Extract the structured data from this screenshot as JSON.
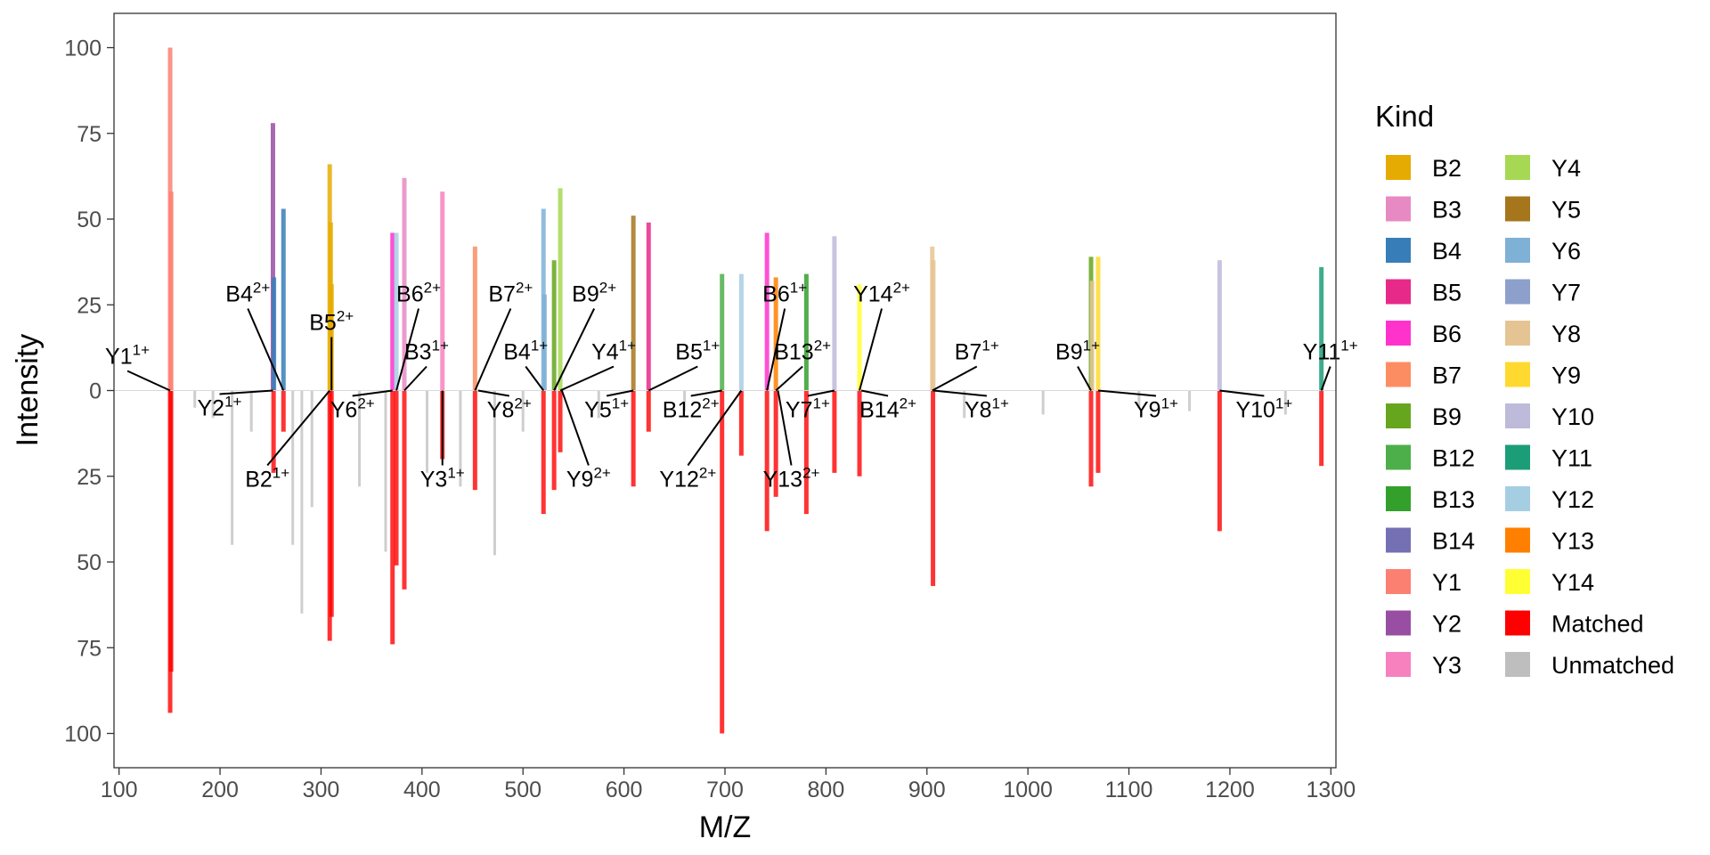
{
  "chart_data": {
    "type": "bar",
    "xlabel": "M/Z",
    "ylabel": "Intensity",
    "xlim": [
      95,
      1305
    ],
    "ylim": [
      -110,
      110
    ],
    "x_ticks": [
      100,
      200,
      300,
      400,
      500,
      600,
      700,
      800,
      900,
      1000,
      1100,
      1200,
      1300
    ],
    "y_ticks": [
      {
        "value": 100,
        "label": "100"
      },
      {
        "value": 75,
        "label": "75"
      },
      {
        "value": 50,
        "label": "50"
      },
      {
        "value": 25,
        "label": "25"
      },
      {
        "value": 0,
        "label": "0"
      },
      {
        "value": -25,
        "label": "25"
      },
      {
        "value": -50,
        "label": "50"
      },
      {
        "value": -75,
        "label": "75"
      },
      {
        "value": -100,
        "label": "100"
      }
    ],
    "grid": false,
    "legend": {
      "title": "Kind",
      "position": "right",
      "entries": [
        {
          "name": "B2",
          "color": "#E6AB02"
        },
        {
          "name": "B3",
          "color": "#E78AC3"
        },
        {
          "name": "B4",
          "color": "#377EB8"
        },
        {
          "name": "B5",
          "color": "#E7298A"
        },
        {
          "name": "B6",
          "color": "#FF33CC"
        },
        {
          "name": "B7",
          "color": "#FC8D62"
        },
        {
          "name": "B9",
          "color": "#66A61E"
        },
        {
          "name": "B12",
          "color": "#4DAF4A"
        },
        {
          "name": "B13",
          "color": "#33A02C"
        },
        {
          "name": "B14",
          "color": "#7570B3"
        },
        {
          "name": "Y1",
          "color": "#FB8072"
        },
        {
          "name": "Y2",
          "color": "#984EA3"
        },
        {
          "name": "Y3",
          "color": "#F781BF"
        },
        {
          "name": "Y4",
          "color": "#A6D854"
        },
        {
          "name": "Y5",
          "color": "#A6761D"
        },
        {
          "name": "Y6",
          "color": "#7FB0D6"
        },
        {
          "name": "Y7",
          "color": "#8DA0CB"
        },
        {
          "name": "Y8",
          "color": "#E5C494"
        },
        {
          "name": "Y9",
          "color": "#FFD92F"
        },
        {
          "name": "Y10",
          "color": "#BEBADA"
        },
        {
          "name": "Y11",
          "color": "#1B9E77"
        },
        {
          "name": "Y12",
          "color": "#A6CEE3"
        },
        {
          "name": "Y13",
          "color": "#FF7F00"
        },
        {
          "name": "Y14",
          "color": "#FFFF33"
        },
        {
          "name": "Matched",
          "color": "#FF0000"
        },
        {
          "name": "Unmatched",
          "color": "#BEBEBE"
        }
      ]
    },
    "predicted_peaks": [
      {
        "kind": "Y1",
        "x": 150.6,
        "y": 100
      },
      {
        "kind": "Y1",
        "x": 151.6,
        "y": 58
      },
      {
        "kind": "Y2",
        "x": 252.4,
        "y": 78
      },
      {
        "kind": "B4",
        "x": 253.4,
        "y": 33
      },
      {
        "kind": "B4",
        "x": 262.8,
        "y": 53
      },
      {
        "kind": "B2",
        "x": 308.6,
        "y": 66
      },
      {
        "kind": "B2",
        "x": 309.6,
        "y": 49
      },
      {
        "kind": "B2",
        "x": 310.4,
        "y": 31
      },
      {
        "kind": "B6",
        "x": 370.8,
        "y": 46
      },
      {
        "kind": "Y12",
        "x": 374.6,
        "y": 46
      },
      {
        "kind": "B3",
        "x": 382.5,
        "y": 62
      },
      {
        "kind": "Y3",
        "x": 420.2,
        "y": 58
      },
      {
        "kind": "B7",
        "x": 452.5,
        "y": 42
      },
      {
        "kind": "Y6",
        "x": 520.3,
        "y": 53
      },
      {
        "kind": "Y6",
        "x": 521.3,
        "y": 28
      },
      {
        "kind": "B9",
        "x": 530.8,
        "y": 38
      },
      {
        "kind": "Y4",
        "x": 536.9,
        "y": 59
      },
      {
        "kind": "Y5",
        "x": 609.3,
        "y": 51
      },
      {
        "kind": "B5",
        "x": 624.4,
        "y": 49
      },
      {
        "kind": "B12",
        "x": 697.1,
        "y": 34
      },
      {
        "kind": "Y12",
        "x": 716.2,
        "y": 34
      },
      {
        "kind": "B6",
        "x": 741.6,
        "y": 46
      },
      {
        "kind": "Y13",
        "x": 750.4,
        "y": 33
      },
      {
        "kind": "B13",
        "x": 780.6,
        "y": 34
      },
      {
        "kind": "Y10",
        "x": 808.4,
        "y": 45
      },
      {
        "kind": "Y14",
        "x": 833.2,
        "y": 31
      },
      {
        "kind": "Y8",
        "x": 905.3,
        "y": 42
      },
      {
        "kind": "Y8",
        "x": 906.3,
        "y": 38
      },
      {
        "kind": "B9",
        "x": 1062.5,
        "y": 39
      },
      {
        "kind": "Y8",
        "x": 1063.5,
        "y": 32
      },
      {
        "kind": "Y9",
        "x": 1069.5,
        "y": 39
      },
      {
        "kind": "Y10",
        "x": 1189.8,
        "y": 38
      },
      {
        "kind": "Y11",
        "x": 1290.6,
        "y": 36
      }
    ],
    "observed_peaks": [
      {
        "kind": "Matched",
        "x": 150.6,
        "y": -94
      },
      {
        "kind": "Matched",
        "x": 151.5,
        "y": -82
      },
      {
        "kind": "Unmatched",
        "x": 175,
        "y": -5
      },
      {
        "kind": "Unmatched",
        "x": 193,
        "y": -8
      },
      {
        "kind": "Unmatched",
        "x": 212,
        "y": -45
      },
      {
        "kind": "Unmatched",
        "x": 231,
        "y": -12
      },
      {
        "kind": "Matched",
        "x": 253,
        "y": -24
      },
      {
        "kind": "Matched",
        "x": 262.8,
        "y": -12
      },
      {
        "kind": "Unmatched",
        "x": 272,
        "y": -45
      },
      {
        "kind": "Unmatched",
        "x": 281,
        "y": -65
      },
      {
        "kind": "Unmatched",
        "x": 291,
        "y": -34
      },
      {
        "kind": "Matched",
        "x": 308.6,
        "y": -73
      },
      {
        "kind": "Matched",
        "x": 310.4,
        "y": -66
      },
      {
        "kind": "Unmatched",
        "x": 338,
        "y": -28
      },
      {
        "kind": "Unmatched",
        "x": 364,
        "y": -47
      },
      {
        "kind": "Matched",
        "x": 370.8,
        "y": -74
      },
      {
        "kind": "Matched",
        "x": 374.6,
        "y": -51
      },
      {
        "kind": "Matched",
        "x": 382.5,
        "y": -58
      },
      {
        "kind": "Unmatched",
        "x": 405,
        "y": -24
      },
      {
        "kind": "Matched",
        "x": 420.2,
        "y": -20
      },
      {
        "kind": "Unmatched",
        "x": 438,
        "y": -28
      },
      {
        "kind": "Matched",
        "x": 452.5,
        "y": -29
      },
      {
        "kind": "Unmatched",
        "x": 472,
        "y": -48
      },
      {
        "kind": "Unmatched",
        "x": 500,
        "y": -12
      },
      {
        "kind": "Matched",
        "x": 520.3,
        "y": -36
      },
      {
        "kind": "Matched",
        "x": 530.8,
        "y": -29
      },
      {
        "kind": "Matched",
        "x": 536.9,
        "y": -18
      },
      {
        "kind": "Unmatched",
        "x": 575,
        "y": -8
      },
      {
        "kind": "Matched",
        "x": 609.3,
        "y": -28
      },
      {
        "kind": "Matched",
        "x": 624.4,
        "y": -12
      },
      {
        "kind": "Unmatched",
        "x": 660,
        "y": -6
      },
      {
        "kind": "Matched",
        "x": 697.1,
        "y": -100
      },
      {
        "kind": "Matched",
        "x": 716.2,
        "y": -19
      },
      {
        "kind": "Matched",
        "x": 741.6,
        "y": -41
      },
      {
        "kind": "Matched",
        "x": 750.4,
        "y": -31
      },
      {
        "kind": "Matched",
        "x": 780.6,
        "y": -36
      },
      {
        "kind": "Matched",
        "x": 808.4,
        "y": -24
      },
      {
        "kind": "Matched",
        "x": 833.2,
        "y": -25
      },
      {
        "kind": "Matched",
        "x": 906,
        "y": -57
      },
      {
        "kind": "Unmatched",
        "x": 937,
        "y": -8
      },
      {
        "kind": "Unmatched",
        "x": 1015,
        "y": -7
      },
      {
        "kind": "Matched",
        "x": 1062.5,
        "y": -28
      },
      {
        "kind": "Matched",
        "x": 1069.5,
        "y": -24
      },
      {
        "kind": "Unmatched",
        "x": 1110,
        "y": -5
      },
      {
        "kind": "Unmatched",
        "x": 1160,
        "y": -6
      },
      {
        "kind": "Matched",
        "x": 1189.8,
        "y": -41
      },
      {
        "kind": "Unmatched",
        "x": 1255,
        "y": -7
      },
      {
        "kind": "Matched",
        "x": 1290.6,
        "y": -22
      }
    ],
    "annotations": [
      {
        "name": "Y1",
        "charge": "1+",
        "x": 150.6
      },
      {
        "name": "Y2",
        "charge": "1+",
        "x": 252.4
      },
      {
        "name": "B4",
        "charge": "2+",
        "x": 262.8
      },
      {
        "name": "B2",
        "charge": "1+",
        "x": 308.6
      },
      {
        "name": "B5",
        "charge": "2+",
        "x": 310.4
      },
      {
        "name": "Y6",
        "charge": "2+",
        "x": 370.8
      },
      {
        "name": "B6",
        "charge": "2+",
        "x": 374.6
      },
      {
        "name": "B3",
        "charge": "1+",
        "x": 382.5
      },
      {
        "name": "Y3",
        "charge": "1+",
        "x": 420.2
      },
      {
        "name": "B7",
        "charge": "2+",
        "x": 452.5
      },
      {
        "name": "Y8",
        "charge": "2+",
        "x": 455.5
      },
      {
        "name": "B4",
        "charge": "1+",
        "x": 520.3
      },
      {
        "name": "B9",
        "charge": "2+",
        "x": 530.8
      },
      {
        "name": "Y4",
        "charge": "1+",
        "x": 536.9
      },
      {
        "name": "Y9",
        "charge": "2+",
        "x": 538.5
      },
      {
        "name": "Y5",
        "charge": "1+",
        "x": 609.3
      },
      {
        "name": "B5",
        "charge": "1+",
        "x": 624.4
      },
      {
        "name": "B12",
        "charge": "2+",
        "x": 697.1
      },
      {
        "name": "Y12",
        "charge": "2+",
        "x": 716.2
      },
      {
        "name": "B6",
        "charge": "1+",
        "x": 741.6
      },
      {
        "name": "B13",
        "charge": "2+",
        "x": 750.4
      },
      {
        "name": "Y13",
        "charge": "2+",
        "x": 752.5
      },
      {
        "name": "Y7",
        "charge": "1+",
        "x": 808.4
      },
      {
        "name": "Y14",
        "charge": "2+",
        "x": 833.2
      },
      {
        "name": "B14",
        "charge": "2+",
        "x": 835.0
      },
      {
        "name": "B7",
        "charge": "1+",
        "x": 905.3
      },
      {
        "name": "Y8",
        "charge": "1+",
        "x": 906.3
      },
      {
        "name": "B9",
        "charge": "1+",
        "x": 1062.5
      },
      {
        "name": "Y9",
        "charge": "1+",
        "x": 1069.5
      },
      {
        "name": "Y10",
        "charge": "1+",
        "x": 1189.8
      },
      {
        "name": "Y11",
        "charge": "1+",
        "x": 1290.6
      }
    ]
  }
}
